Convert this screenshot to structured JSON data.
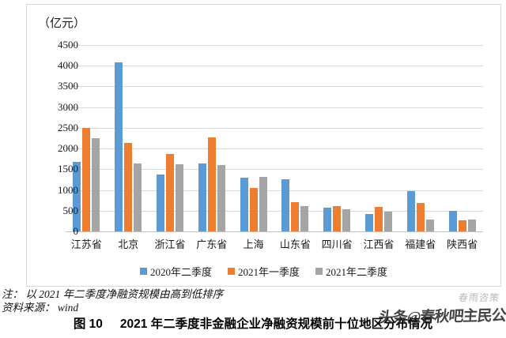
{
  "chart_data": {
    "type": "bar",
    "unit_label": "（亿元）",
    "categories": [
      "江苏省",
      "北京",
      "浙江省",
      "广东省",
      "上海",
      "山东省",
      "四川省",
      "江西省",
      "福建省",
      "陕西省"
    ],
    "series": [
      {
        "name": "2020年二季度",
        "color": "#5B9BD5",
        "values": [
          1670,
          4080,
          1370,
          1640,
          1300,
          1250,
          570,
          420,
          980,
          500
        ]
      },
      {
        "name": "2021年一季度",
        "color": "#ED7D31",
        "values": [
          2490,
          2130,
          1870,
          2270,
          1040,
          710,
          610,
          590,
          680,
          270
        ]
      },
      {
        "name": "2021年二季度",
        "color": "#A5A5A5",
        "values": [
          2250,
          1640,
          1630,
          1600,
          1310,
          610,
          530,
          470,
          290,
          280
        ]
      }
    ],
    "ylim": [
      0,
      4500
    ],
    "ytick_step": 500,
    "grid": true,
    "legend_position": "bottom",
    "gridline_color": "#d9d9d9"
  },
  "notes": {
    "sort_note": "注：  以 2021 年二季度净融资规模由高到低排序",
    "source": "资料来源：  wind"
  },
  "caption": {
    "fig_no": "图 10",
    "title": "2021 年二季度非金融企业净融资规模前十位地区分布情况"
  },
  "watermark": {
    "light_text": "春雨咨策",
    "dark_text": "头条@春秋吧主民公"
  }
}
